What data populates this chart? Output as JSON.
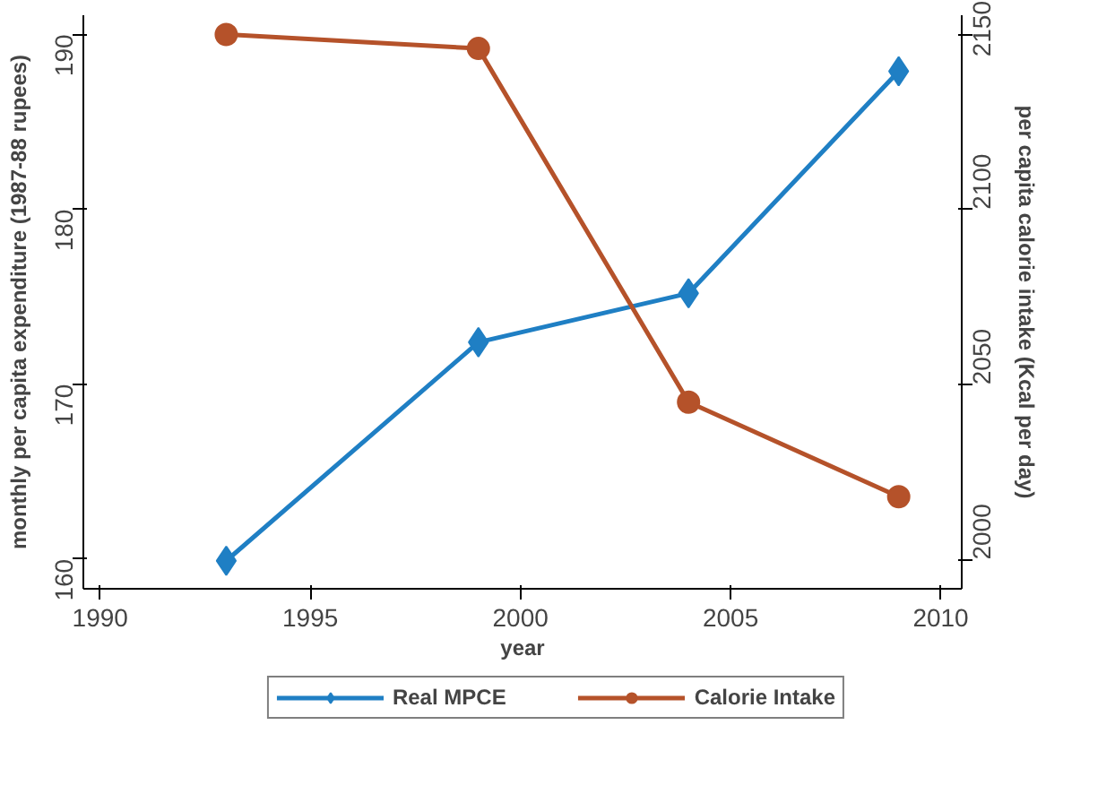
{
  "chart_data": {
    "type": "line",
    "xlabel": "year",
    "ylabel": "monthly per capita expenditure (1987-88 rupees)",
    "y2label": "per capita calorie intake (Kcal per day)",
    "x": [
      1993,
      1999,
      2004,
      2009
    ],
    "series": [
      {
        "name": "Real MPCE",
        "color": "#1f7fc4",
        "values": [
          159.9,
          172.4,
          175.2,
          187.9
        ],
        "marker": "diamond"
      },
      {
        "name": "Calorie Intake",
        "color": "#b5522a",
        "values": [
          2150,
          2146,
          2045,
          2018
        ],
        "marker": "circle",
        "axis": "y2"
      }
    ],
    "xlim": [
      1989.6,
      2010.5
    ],
    "xticks": [
      1990,
      1995,
      2000,
      2005,
      2010
    ],
    "ylim": [
      158.3,
      191.1
    ],
    "yticks": [
      160,
      170,
      180,
      190
    ],
    "y2lim": [
      1991.7,
      2155.5
    ],
    "y2ticks": [
      2000,
      2050,
      2100,
      2150
    ],
    "grid": false,
    "legend": "bottom",
    "line_style": "solid"
  }
}
